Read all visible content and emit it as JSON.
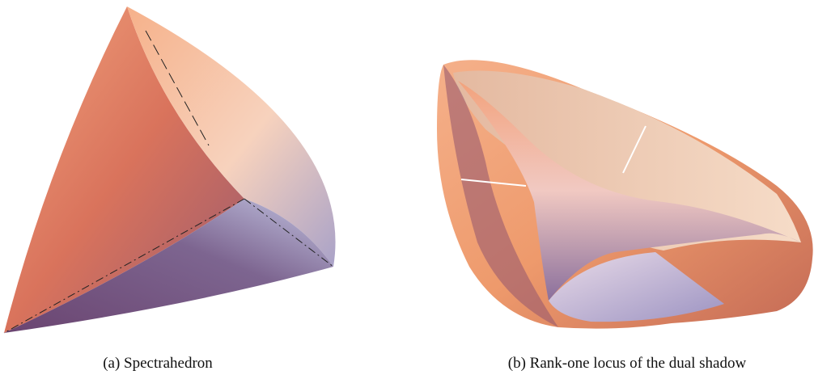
{
  "figures": [
    {
      "caption": "(a) Spectrahedron"
    },
    {
      "caption": "(b) Rank-one locus of the dual shadow"
    }
  ]
}
